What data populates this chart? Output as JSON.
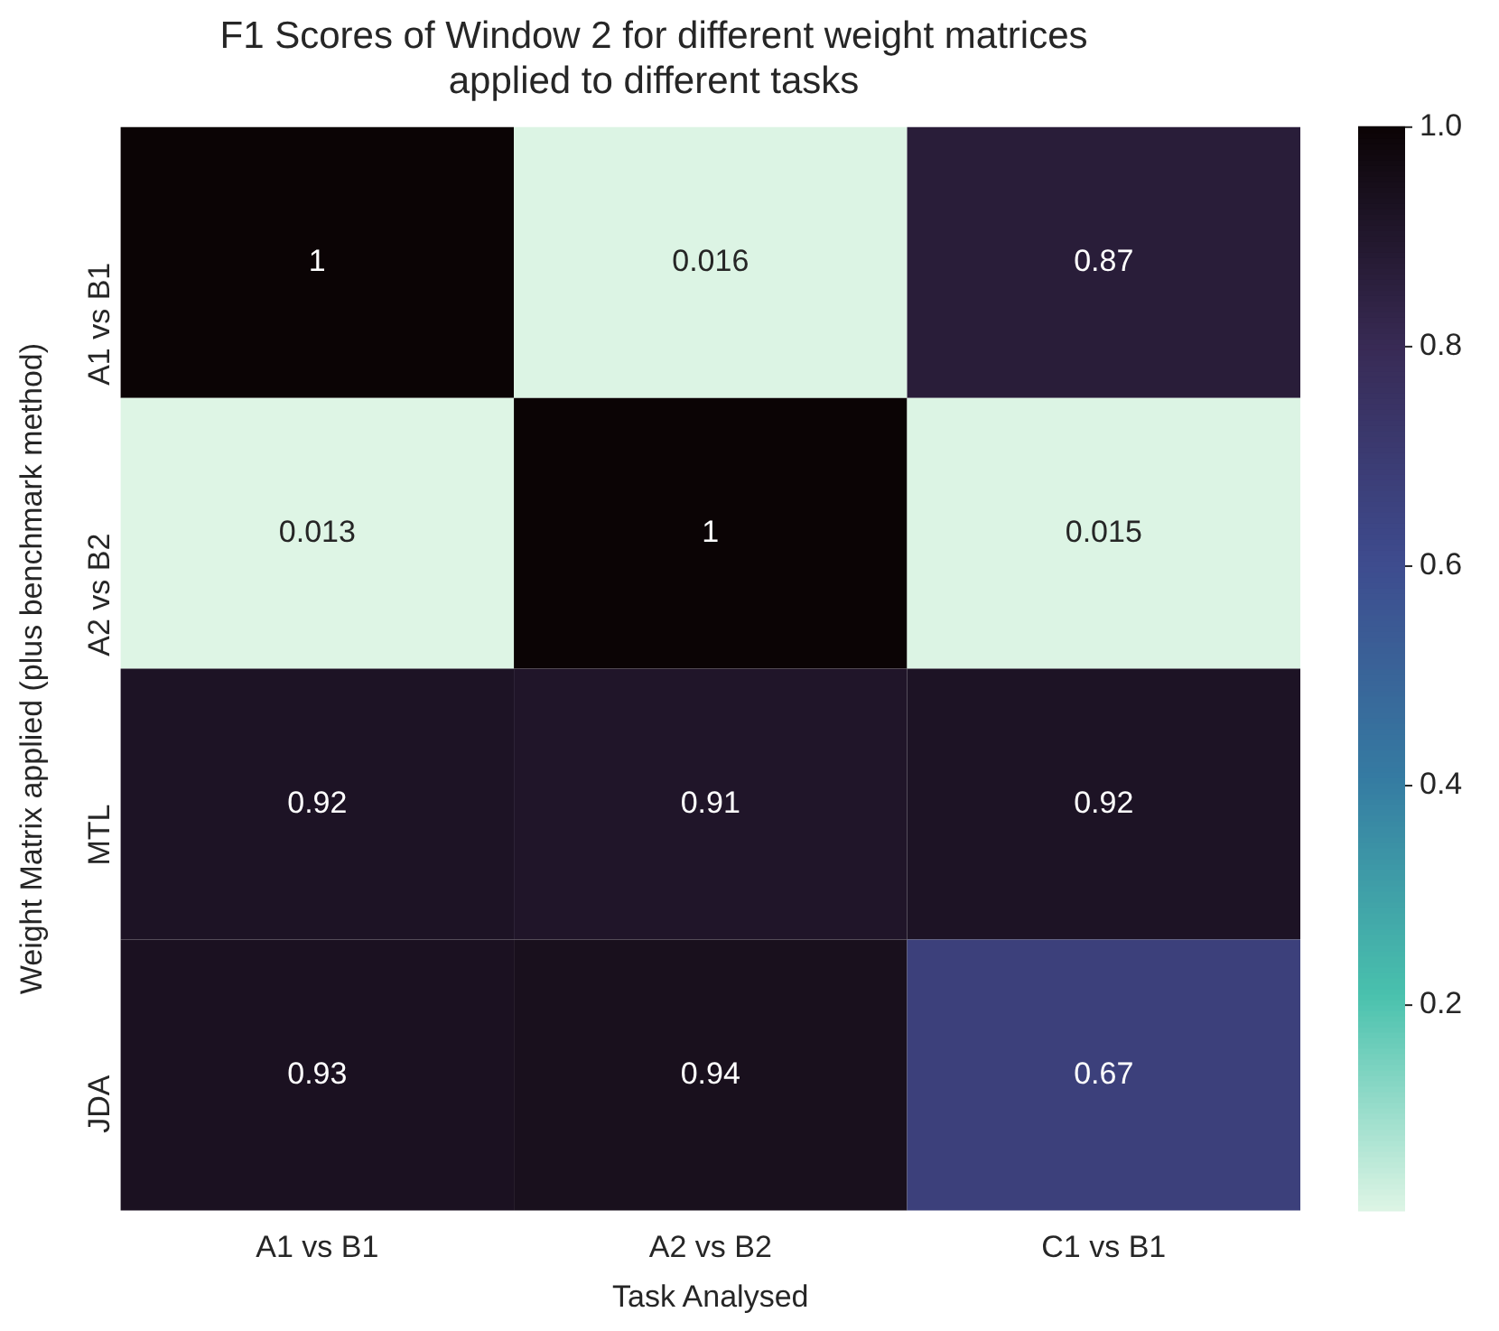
{
  "chart_data": {
    "type": "heatmap",
    "title": "F1 Scores of Window 2 for different weight matrices\napplied to different tasks",
    "xlabel": "Task Analysed",
    "ylabel": "Weight Matrix applied (plus benchmark method)",
    "categories": [
      "A1 vs B1",
      "A2 vs B2",
      "C1 vs B1"
    ],
    "y_categories": [
      "A1 vs B1",
      "A2 vs B2",
      "MTL",
      "JDA"
    ],
    "cells": [
      [
        1,
        0.016,
        0.87
      ],
      [
        0.013,
        1,
        0.015
      ],
      [
        0.92,
        0.91,
        0.92
      ],
      [
        0.93,
        0.94,
        0.67
      ]
    ],
    "clim": [
      0.013,
      1
    ],
    "cticks": [
      0.2,
      0.4,
      0.6,
      0.8,
      {
        "value": 1,
        "label": "1.0"
      }
    ],
    "data_labels": true
  }
}
